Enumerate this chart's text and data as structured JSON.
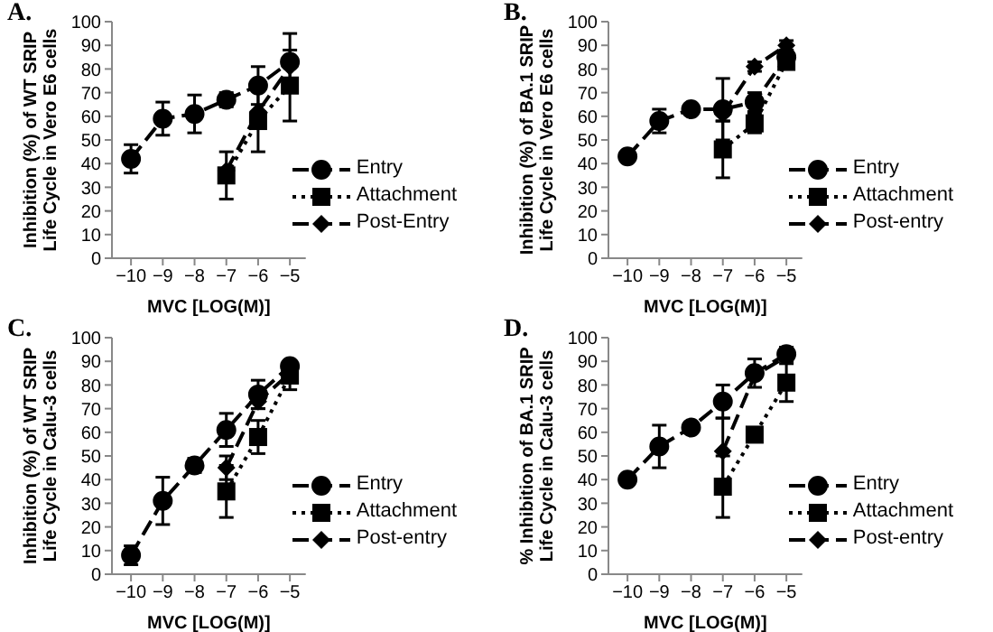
{
  "chart_data": [
    {
      "type": "line",
      "title": "A.",
      "xlabel": "MVC [LOG(M)]",
      "ylabel": "Inhibition (%) of WT SRIP\nLife Cycle in Vero E6 cells",
      "xlim": [
        -10.6,
        -4.5
      ],
      "xticks": [
        -10,
        -9,
        -8,
        -7,
        -6,
        -5
      ],
      "ylim": [
        0,
        100
      ],
      "yticks": [
        0,
        10,
        20,
        30,
        40,
        50,
        60,
        70,
        80,
        90,
        100
      ],
      "grid": false,
      "legend": "bottom right",
      "series": [
        {
          "name": "Entry",
          "color": "#000000",
          "marker": "circle",
          "line_style": "dashed",
          "x": [
            -10,
            -9,
            -8,
            -7,
            -6,
            -5
          ],
          "values": [
            42,
            59,
            61,
            67,
            73,
            83
          ],
          "errors": [
            6,
            7,
            8,
            3,
            8,
            12
          ]
        },
        {
          "name": "Attachment",
          "color": "#000000",
          "marker": "square",
          "line_style": "dotted",
          "x": [
            -7,
            -6,
            -5
          ],
          "values": [
            35,
            58,
            73
          ],
          "errors": [
            10,
            13,
            15
          ]
        },
        {
          "name": "Post-Entry",
          "color": "#000000",
          "marker": "diamond",
          "line_style": "dashed",
          "x": [
            -7,
            -6,
            -5
          ],
          "values": [
            37,
            62,
            81
          ]
        }
      ]
    },
    {
      "type": "line",
      "title": "B.",
      "xlabel": "MVC [LOG(M)]",
      "ylabel": "Inhibition (%) of BA.1 SRIP\nLife Cycle in Vero E6 cells",
      "xlim": [
        -10.6,
        -4.5
      ],
      "xticks": [
        -10,
        -9,
        -8,
        -7,
        -6,
        -5
      ],
      "ylim": [
        0,
        100
      ],
      "yticks": [
        0,
        10,
        20,
        30,
        40,
        50,
        60,
        70,
        80,
        90,
        100
      ],
      "grid": false,
      "legend": "bottom right",
      "series": [
        {
          "name": "Entry",
          "color": "#000000",
          "marker": "circle",
          "line_style": "dashed",
          "x": [
            -10,
            -9,
            -8,
            -7,
            -6,
            -5
          ],
          "values": [
            43,
            58,
            63,
            63,
            66,
            85
          ],
          "errors": [
            2,
            5,
            2,
            13,
            4,
            3
          ]
        },
        {
          "name": "Attachment",
          "color": "#000000",
          "marker": "square",
          "line_style": "dotted",
          "x": [
            -7,
            -6,
            -5
          ],
          "values": [
            46,
            57,
            83
          ],
          "errors": [
            12,
            4,
            3
          ]
        },
        {
          "name": "Post-entry",
          "color": "#000000",
          "marker": "diamond",
          "line_style": "dashed",
          "x": [
            -7,
            -6,
            -5
          ],
          "values": [
            61,
            81,
            90
          ],
          "errors": [
            3,
            2,
            2
          ]
        }
      ]
    },
    {
      "type": "line",
      "title": "C.",
      "xlabel": "MVC [LOG(M)]",
      "ylabel": "Inhibition (%) of WT SRIP\nLife Cycle in Calu-3 cells",
      "xlim": [
        -10.6,
        -4.5
      ],
      "xticks": [
        -10,
        -9,
        -8,
        -7,
        -6,
        -5
      ],
      "ylim": [
        0,
        100
      ],
      "yticks": [
        0,
        10,
        20,
        30,
        40,
        50,
        60,
        70,
        80,
        90,
        100
      ],
      "grid": false,
      "legend": "bottom right",
      "series": [
        {
          "name": "Entry",
          "color": "#000000",
          "marker": "circle",
          "line_style": "dashed",
          "x": [
            -10,
            -9,
            -8,
            -7,
            -6,
            -5
          ],
          "values": [
            8,
            31,
            46,
            61,
            76,
            88
          ],
          "errors": [
            4,
            10,
            3,
            7,
            6,
            2
          ]
        },
        {
          "name": "Attachment",
          "color": "#000000",
          "marker": "square",
          "line_style": "dotted",
          "x": [
            -7,
            -6,
            -5
          ],
          "values": [
            35,
            58,
            84
          ],
          "errors": [
            11,
            7,
            6
          ]
        },
        {
          "name": "Post-entry",
          "color": "#000000",
          "marker": "diamond",
          "line_style": "dashed",
          "x": [
            -7,
            -6,
            -5
          ],
          "values": [
            45,
            73,
            85
          ],
          "errors": [
            5,
            3,
            3
          ]
        }
      ]
    },
    {
      "type": "line",
      "title": "D.",
      "xlabel": "MVC [LOG(M)]",
      "ylabel": "% Inhibition of BA.1 SRIP\nLife Cycle in Calu-3 cells",
      "xlim": [
        -10.6,
        -4.5
      ],
      "xticks": [
        -10,
        -9,
        -8,
        -7,
        -6,
        -5
      ],
      "ylim": [
        0,
        100
      ],
      "yticks": [
        0,
        10,
        20,
        30,
        40,
        50,
        60,
        70,
        80,
        90,
        100
      ],
      "grid": false,
      "legend": "bottom right",
      "series": [
        {
          "name": "Entry",
          "color": "#000000",
          "marker": "circle",
          "line_style": "dashed",
          "x": [
            -10,
            -9,
            -8,
            -7,
            -6,
            -5
          ],
          "values": [
            40,
            54,
            62,
            73,
            85,
            93
          ],
          "errors": [
            2,
            9,
            2,
            7,
            6,
            3
          ]
        },
        {
          "name": "Attachment",
          "color": "#000000",
          "marker": "square",
          "line_style": "dotted",
          "x": [
            -7,
            -6,
            -5
          ],
          "values": [
            37,
            59,
            81
          ],
          "errors": [
            13,
            2,
            8
          ]
        },
        {
          "name": "Post-entry",
          "color": "#000000",
          "marker": "diamond",
          "line_style": "dashed",
          "x": [
            -7,
            -6,
            -5
          ],
          "values": [
            52,
            84,
            92
          ],
          "errors": [
            14,
            null,
            null
          ]
        }
      ]
    }
  ]
}
